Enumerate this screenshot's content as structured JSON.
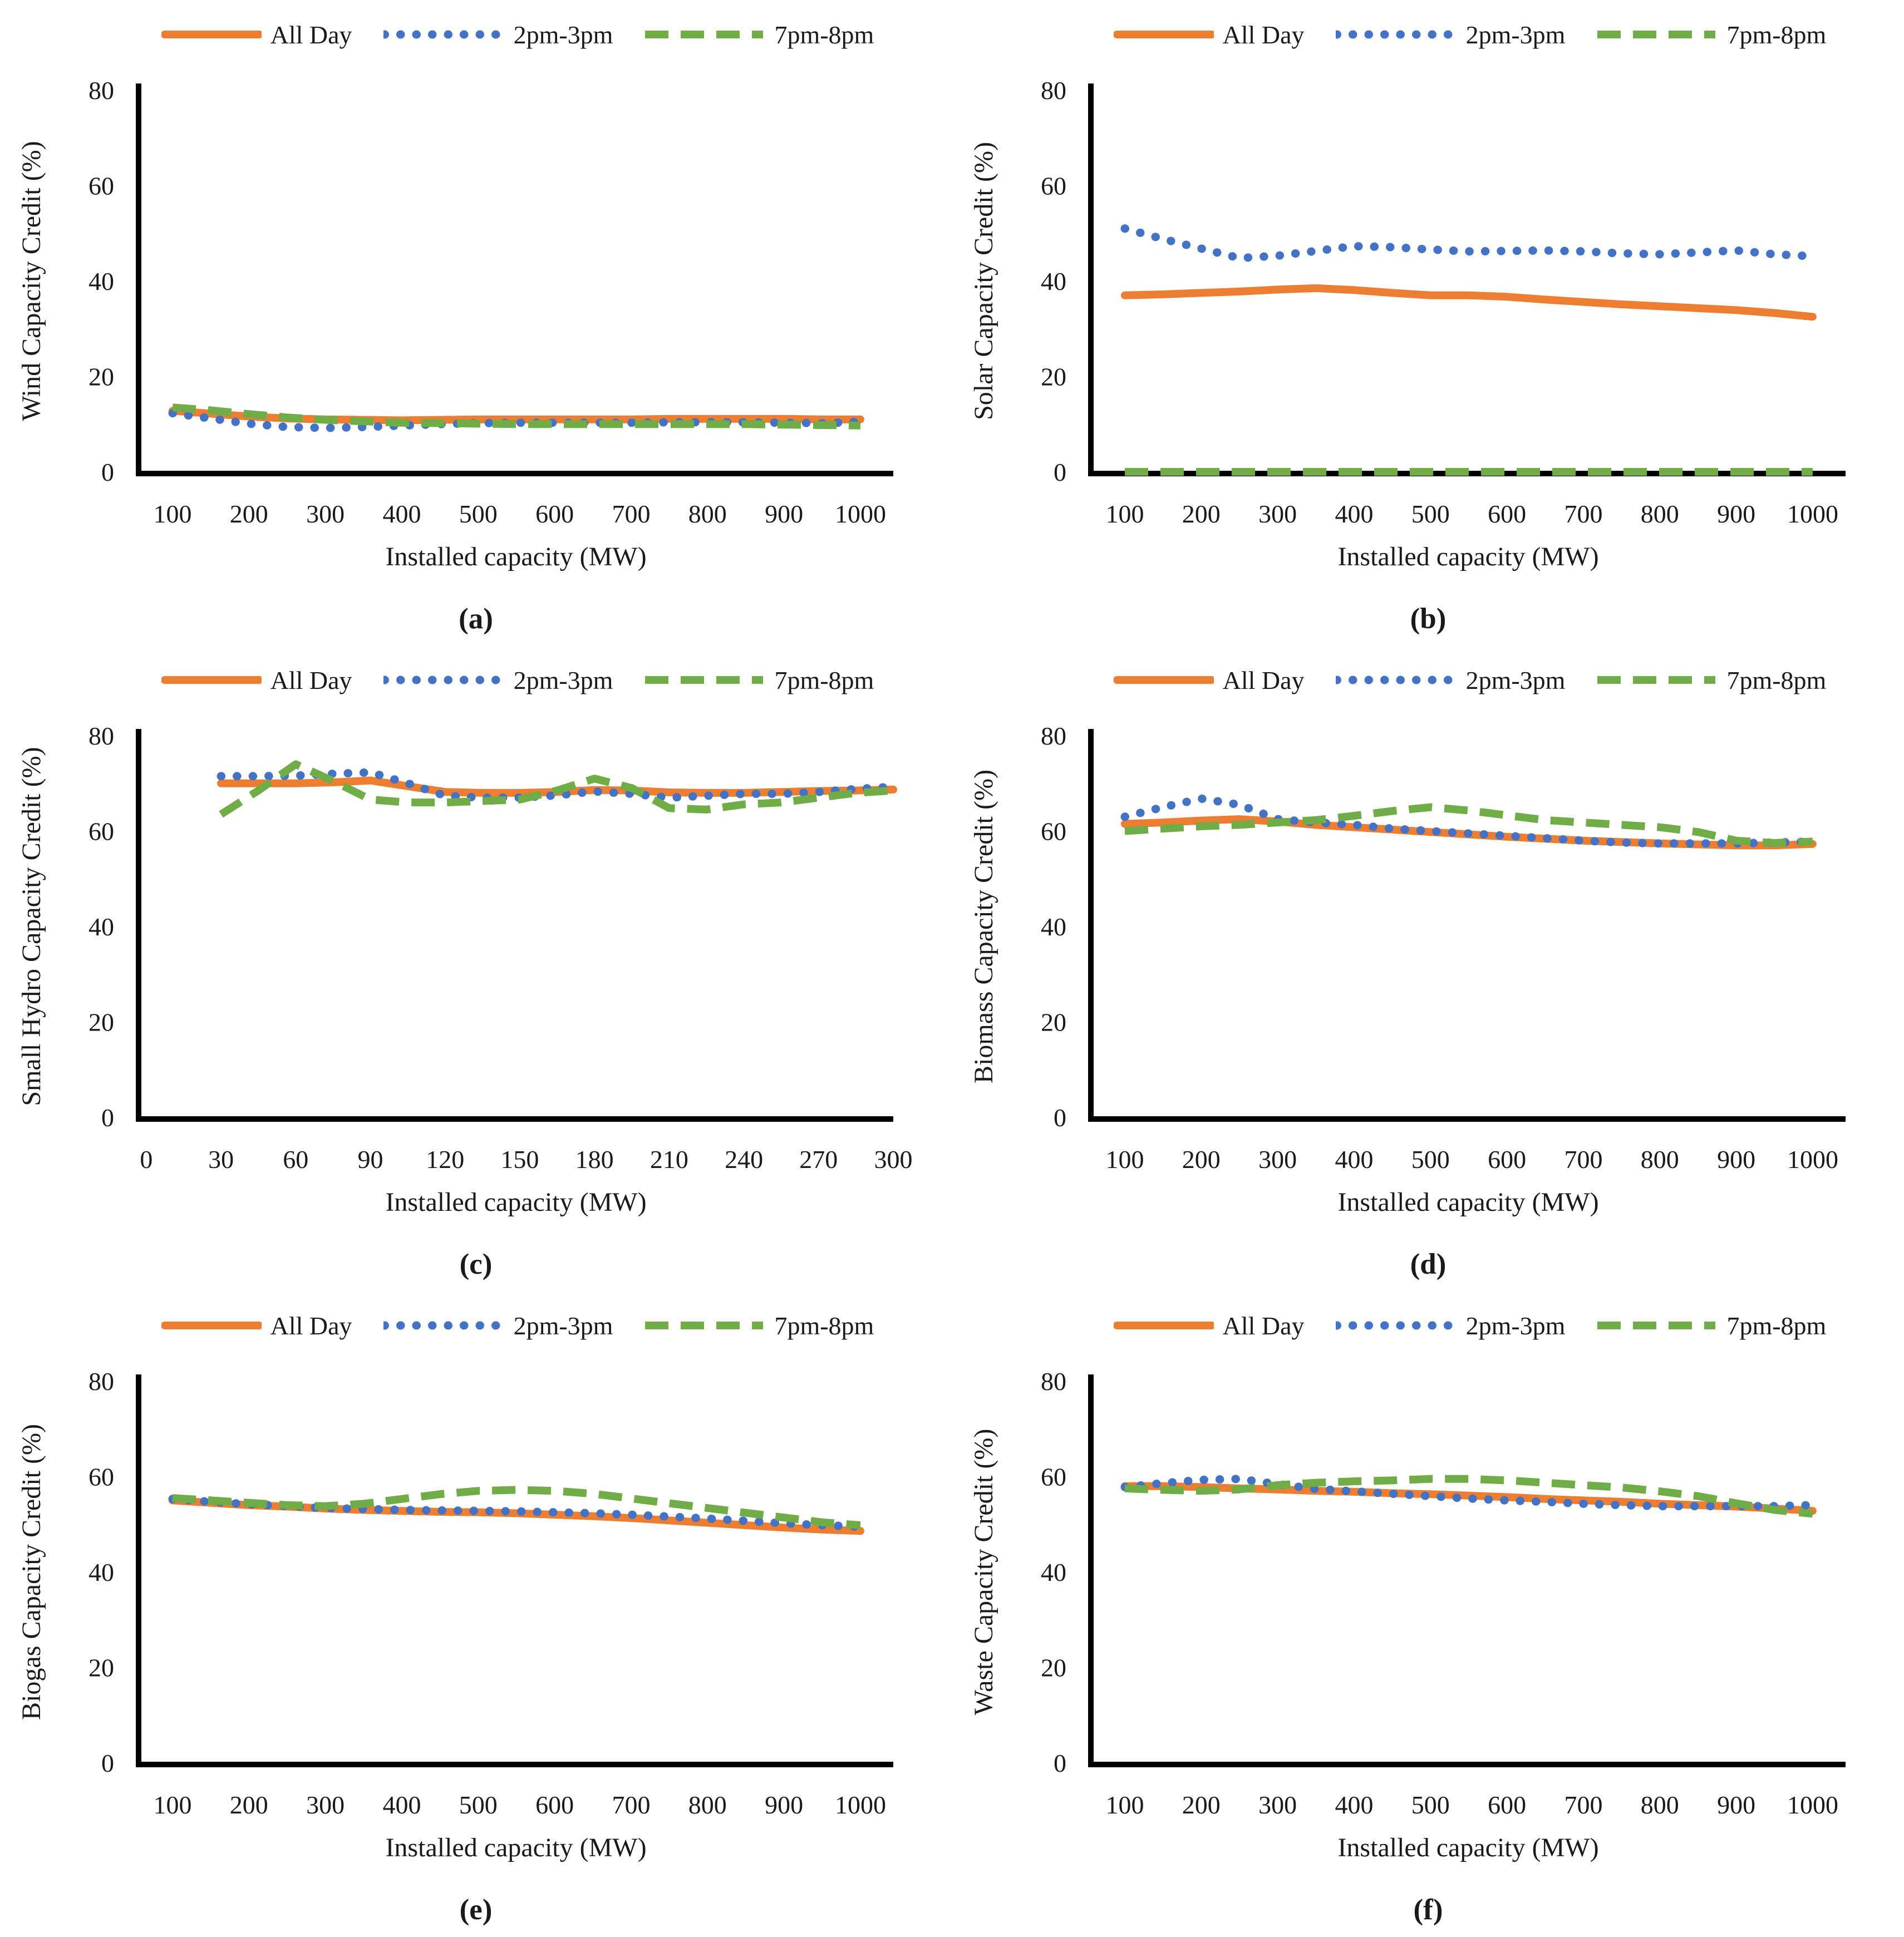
{
  "figure": {
    "x_axis_title": "Installed capacity (MW)",
    "legend_labels": [
      "All Day",
      "2pm-3pm",
      "7pm-8pm"
    ]
  },
  "colors": {
    "all_day": "#ED7D31",
    "pm2_3": "#4472C4",
    "pm7_8": "#70AD47",
    "axis": "#000000",
    "text": "#1a1a1a"
  },
  "chart_data": {
    "type": "line",
    "legend_position": "top",
    "grid": false,
    "series_styles": [
      {
        "name": "All Day",
        "color": "#ED7D31",
        "dash": "none",
        "width": 14,
        "linecap": "round"
      },
      {
        "name": "2pm-3pm",
        "color": "#4472C4",
        "dash": "0.5 28",
        "width": 15,
        "linecap": "round"
      },
      {
        "name": "7pm-8pm",
        "color": "#70AD47",
        "dash": "42 22",
        "width": 14,
        "linecap": "butt"
      }
    ],
    "charts": [
      {
        "id": "a",
        "caption": "(a)",
        "y_title": "Wind Capacity Credit (%)",
        "x_title": "Installed capacity (MW)",
        "y_ticks": [
          0,
          20,
          40,
          60,
          80
        ],
        "ylim": [
          0,
          80
        ],
        "x_ticks": [
          100,
          200,
          300,
          400,
          500,
          600,
          700,
          800,
          900,
          1000
        ],
        "x_domain": [
          55.6,
          1043
        ],
        "x": [
          100,
          150,
          200,
          250,
          300,
          350,
          400,
          450,
          500,
          550,
          600,
          650,
          700,
          750,
          800,
          850,
          900,
          950,
          1000
        ],
        "series": [
          {
            "name": "All Day",
            "values": [
              12.8,
              12.2,
              11.6,
              11.2,
              11.0,
              10.9,
              10.8,
              10.9,
              11.0,
              11.0,
              11.0,
              11.0,
              11.0,
              11.1,
              11.1,
              11.1,
              11.1,
              11.0,
              11.0
            ]
          },
          {
            "name": "2pm-3pm",
            "values": [
              12.3,
              11.2,
              10.1,
              9.4,
              9.2,
              9.4,
              9.7,
              10.0,
              10.2,
              10.3,
              10.3,
              10.3,
              10.3,
              10.4,
              10.4,
              10.4,
              10.3,
              10.2,
              10.5
            ]
          },
          {
            "name": "7pm-8pm",
            "values": [
              13.5,
              12.9,
              12.1,
              11.4,
              10.9,
              10.6,
              10.3,
              10.2,
              10.1,
              10.0,
              10.0,
              10.0,
              10.0,
              10.0,
              10.0,
              10.0,
              9.9,
              9.8,
              9.7
            ]
          }
        ]
      },
      {
        "id": "b",
        "caption": "(b)",
        "y_title": "Solar Capacity Credit (%)",
        "x_title": "Installed capacity (MW)",
        "y_ticks": [
          0,
          20,
          40,
          60,
          80
        ],
        "ylim": [
          0,
          80
        ],
        "x_ticks": [
          100,
          200,
          300,
          400,
          500,
          600,
          700,
          800,
          900,
          1000
        ],
        "x_domain": [
          55.6,
          1043
        ],
        "x": [
          100,
          150,
          200,
          250,
          300,
          350,
          400,
          450,
          500,
          550,
          600,
          650,
          700,
          750,
          800,
          850,
          900,
          950,
          1000
        ],
        "series": [
          {
            "name": "All Day",
            "values": [
              37.0,
              37.2,
              37.5,
              37.8,
              38.2,
              38.5,
              38.1,
              37.5,
              37.0,
              37.0,
              36.7,
              36.1,
              35.6,
              35.1,
              34.7,
              34.3,
              33.9,
              33.3,
              32.5
            ]
          },
          {
            "name": "2pm-3pm",
            "values": [
              51.0,
              48.8,
              46.8,
              44.8,
              45.3,
              46.3,
              47.3,
              47.1,
              46.6,
              46.2,
              46.3,
              46.4,
              46.2,
              45.8,
              45.6,
              46.0,
              46.4,
              45.6,
              45.2
            ]
          },
          {
            "name": "7pm-8pm",
            "values": [
              0,
              0,
              0,
              0,
              0,
              0,
              0,
              0,
              0,
              0,
              0,
              0,
              0,
              0,
              0,
              0,
              0,
              0,
              0
            ]
          }
        ]
      },
      {
        "id": "c",
        "caption": "(c)",
        "y_title": "Small Hydro Capacity Credit (%)",
        "x_title": "Installed capacity (MW)",
        "y_ticks": [
          0,
          20,
          40,
          60,
          80
        ],
        "ylim": [
          0,
          80
        ],
        "x_ticks": [
          0,
          30,
          60,
          90,
          120,
          150,
          180,
          210,
          240,
          270,
          300
        ],
        "x_domain": [
          -3.1,
          300
        ],
        "x": [
          30,
          45,
          60,
          75,
          90,
          105,
          120,
          135,
          150,
          165,
          180,
          195,
          210,
          225,
          240,
          255,
          270,
          285,
          300
        ],
        "series": [
          {
            "name": "All Day",
            "values": [
              70.0,
              70.0,
              70.0,
              70.2,
              70.6,
              69.4,
              68.2,
              68.0,
              68.0,
              68.2,
              68.6,
              68.5,
              68.1,
              68.0,
              68.0,
              68.2,
              68.4,
              68.5,
              68.7
            ]
          },
          {
            "name": "2pm-3pm",
            "values": [
              71.5,
              71.5,
              71.6,
              72.0,
              72.3,
              70.0,
              67.4,
              67.0,
              67.0,
              67.5,
              68.3,
              67.8,
              67.0,
              67.4,
              67.8,
              67.8,
              68.2,
              68.8,
              69.3
            ]
          },
          {
            "name": "7pm-8pm",
            "values": [
              63.5,
              68.5,
              74.0,
              70.5,
              66.6,
              66.0,
              66.0,
              66.3,
              66.6,
              68.5,
              71.0,
              69.0,
              64.8,
              64.5,
              65.6,
              66.0,
              67.0,
              68.0,
              68.5
            ]
          }
        ]
      },
      {
        "id": "d",
        "caption": "(d)",
        "y_title": "Biomass Capacity Credit (%)",
        "x_title": "Installed capacity (MW)",
        "y_ticks": [
          0,
          20,
          40,
          60,
          80
        ],
        "ylim": [
          0,
          80
        ],
        "x_ticks": [
          100,
          200,
          300,
          400,
          500,
          600,
          700,
          800,
          900,
          1000
        ],
        "x_domain": [
          55.6,
          1043
        ],
        "x": [
          100,
          150,
          200,
          250,
          300,
          350,
          400,
          450,
          500,
          550,
          600,
          650,
          700,
          750,
          800,
          850,
          900,
          950,
          1000
        ],
        "series": [
          {
            "name": "All Day",
            "values": [
              61.5,
              61.8,
              62.2,
              62.5,
              62.0,
              61.3,
              60.8,
              60.3,
              59.8,
              59.3,
              58.8,
              58.4,
              58.0,
              57.7,
              57.4,
              57.2,
              57.0,
              57.0,
              57.3
            ]
          },
          {
            "name": "2pm-3pm",
            "values": [
              63.0,
              65.0,
              66.8,
              65.5,
              62.5,
              61.8,
              61.3,
              60.5,
              60.0,
              59.5,
              59.0,
              58.5,
              58.0,
              57.6,
              57.4,
              57.4,
              57.4,
              57.6,
              57.8
            ]
          },
          {
            "name": "7pm-8pm",
            "values": [
              60.0,
              60.5,
              61.0,
              61.3,
              61.8,
              62.3,
              63.2,
              64.2,
              65.0,
              64.3,
              63.3,
              62.3,
              61.8,
              61.3,
              60.8,
              59.8,
              58.0,
              57.5,
              57.8
            ]
          }
        ]
      },
      {
        "id": "e",
        "caption": "(e)",
        "y_title": "Biogas Capacity Credit (%)",
        "x_title": "Installed capacity (MW)",
        "y_ticks": [
          0,
          20,
          40,
          60,
          80
        ],
        "ylim": [
          0,
          80
        ],
        "x_ticks": [
          100,
          200,
          300,
          400,
          500,
          600,
          700,
          800,
          900,
          1000
        ],
        "x_domain": [
          55.6,
          1043
        ],
        "x": [
          100,
          150,
          200,
          250,
          300,
          350,
          400,
          450,
          500,
          550,
          600,
          650,
          700,
          750,
          800,
          850,
          900,
          950,
          1000
        ],
        "series": [
          {
            "name": "All Day",
            "values": [
              55.0,
              54.5,
              54.0,
              53.7,
              53.3,
              53.0,
              52.8,
              52.6,
              52.5,
              52.3,
              52.0,
              51.7,
              51.3,
              50.8,
              50.3,
              49.8,
              49.3,
              48.9,
              48.6
            ]
          },
          {
            "name": "2pm-3pm",
            "values": [
              55.3,
              54.7,
              54.2,
              53.8,
              53.4,
              53.2,
              53.0,
              52.9,
              52.8,
              52.7,
              52.5,
              52.3,
              52.0,
              51.6,
              51.2,
              50.7,
              50.2,
              49.8,
              49.5
            ]
          },
          {
            "name": "7pm-8pm",
            "values": [
              55.5,
              55.0,
              54.5,
              54.0,
              53.8,
              54.3,
              55.3,
              56.3,
              57.0,
              57.2,
              57.0,
              56.4,
              55.4,
              54.4,
              53.4,
              52.4,
              51.4,
              50.4,
              49.8
            ]
          }
        ]
      },
      {
        "id": "f",
        "caption": "(f)",
        "y_title": "Waste Capacity Credit (%)",
        "x_title": "Installed capacity (MW)",
        "y_ticks": [
          0,
          20,
          40,
          60,
          80
        ],
        "ylim": [
          0,
          80
        ],
        "x_ticks": [
          100,
          200,
          300,
          400,
          500,
          600,
          700,
          800,
          900,
          1000
        ],
        "x_domain": [
          55.6,
          1043
        ],
        "x": [
          100,
          150,
          200,
          250,
          300,
          350,
          400,
          450,
          500,
          550,
          600,
          650,
          700,
          750,
          800,
          850,
          900,
          950,
          1000
        ],
        "series": [
          {
            "name": "All Day",
            "values": [
              58.0,
              58.0,
              57.8,
              57.5,
              57.3,
              57.0,
              56.8,
              56.5,
              56.3,
              56.0,
              55.7,
              55.3,
              55.0,
              54.7,
              54.3,
              54.0,
              53.7,
              53.3,
              52.8
            ]
          },
          {
            "name": "2pm-3pm",
            "values": [
              57.8,
              58.6,
              59.3,
              59.5,
              58.4,
              57.4,
              56.9,
              56.4,
              55.9,
              55.4,
              55.0,
              54.7,
              54.3,
              54.0,
              53.8,
              53.8,
              53.8,
              53.8,
              54.0
            ]
          },
          {
            "name": "7pm-8pm",
            "values": [
              57.5,
              57.2,
              57.0,
              57.3,
              58.2,
              58.7,
              59.0,
              59.2,
              59.5,
              59.5,
              59.2,
              58.7,
              58.2,
              57.7,
              56.9,
              55.9,
              54.4,
              53.0,
              52.2
            ]
          }
        ]
      }
    ]
  }
}
